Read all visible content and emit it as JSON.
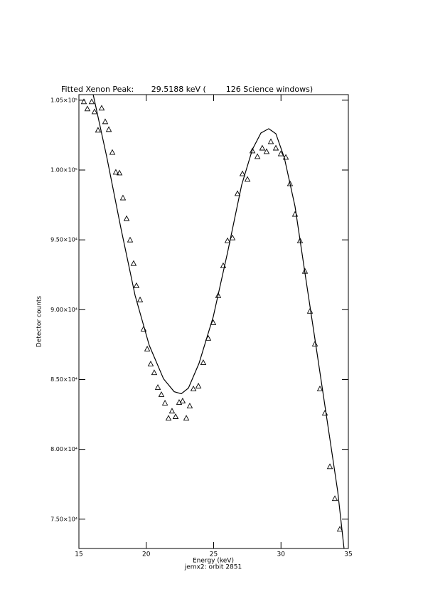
{
  "chart_data": {
    "type": "scatter",
    "title": "Fitted Xenon Peak:       29.5188 keV (        126 Science windows)",
    "x_label": "Energy (keV)",
    "subtitle": "jemx2: orbit 2851",
    "y_label": "Detector counts",
    "xlim": [
      15,
      35
    ],
    "xticks": [
      15,
      20,
      25,
      30,
      35
    ],
    "ylim": [
      72900,
      105400
    ],
    "yticks": [
      {
        "value": 75000,
        "label": "7.50×10⁴"
      },
      {
        "value": 80000,
        "label": "8.00×10⁴"
      },
      {
        "value": 85000,
        "label": "8.50×10⁴"
      },
      {
        "value": 90000,
        "label": "9.00×10⁴"
      },
      {
        "value": 95000,
        "label": "9.50×10⁴"
      },
      {
        "value": 100000,
        "label": "1.00×10⁵"
      },
      {
        "value": 105000,
        "label": "1.05×10⁵"
      }
    ],
    "series": [
      {
        "marker": "triangle",
        "color": "#000000",
        "x": [
          15.37,
          15.63,
          15.95,
          16.16,
          16.42,
          16.69,
          16.95,
          17.22,
          17.48,
          17.74,
          18.01,
          18.27,
          18.54,
          18.8,
          19.06,
          19.27,
          19.54,
          19.8,
          20.07,
          20.33,
          20.59,
          20.86,
          21.12,
          21.39,
          21.65,
          21.91,
          22.18,
          22.44,
          22.7,
          22.97,
          23.23,
          23.5,
          23.87,
          24.23,
          24.6,
          24.97,
          25.34,
          25.71,
          26.03,
          26.4,
          26.77,
          27.14,
          27.51,
          27.88,
          28.25,
          28.61,
          28.93,
          29.25,
          29.62,
          29.99,
          30.36,
          30.67,
          31.04,
          31.41,
          31.78,
          32.15,
          32.52,
          32.89,
          33.26,
          33.63,
          34.0,
          34.37
        ],
        "values": [
          104900,
          104390,
          104900,
          104180,
          102860,
          104440,
          103470,
          102910,
          101270,
          99850,
          99800,
          98010,
          96530,
          95000,
          93320,
          91730,
          90710,
          88620,
          87190,
          86120,
          85500,
          84440,
          83930,
          83320,
          82240,
          82750,
          82350,
          83370,
          83470,
          82240,
          83110,
          84340,
          84540,
          86220,
          87960,
          89080,
          91020,
          93160,
          94950,
          95150,
          98320,
          99740,
          99340,
          101380,
          100970,
          101580,
          101330,
          102040,
          101580,
          101170,
          100920,
          99030,
          96840,
          94950,
          92760,
          89900,
          87550,
          84340,
          82600,
          78770,
          76480,
          74290
        ]
      },
      {
        "marker": "line",
        "color": "#000000",
        "x": [
          16.06,
          17.06,
          18.11,
          19.17,
          20.22,
          21.28,
          22.07,
          22.6,
          23.13,
          23.92,
          24.97,
          26.03,
          27.08,
          27.88,
          28.51,
          29.09,
          29.62,
          30.25,
          31.04,
          31.83,
          32.63,
          33.42,
          34.21,
          34.68
        ],
        "values": [
          105400,
          100970,
          95870,
          91020,
          87450,
          85050,
          84130,
          83980,
          84390,
          86170,
          89490,
          94080,
          98930,
          101480,
          102650,
          102960,
          102600,
          100870,
          97400,
          92300,
          87190,
          82090,
          76990,
          72900
        ]
      }
    ]
  }
}
